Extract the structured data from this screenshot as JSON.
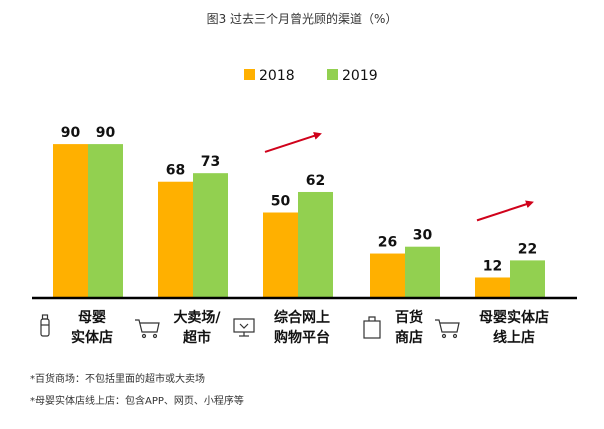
{
  "chart_data": {
    "type": "bar",
    "title": "图3 过去三个月曾光顾的渠道（%）",
    "categories": [
      [
        "母婴",
        "实体店"
      ],
      [
        "大卖场/",
        "超市"
      ],
      [
        "综合网上",
        "购物平台"
      ],
      [
        "百货",
        "商店"
      ],
      [
        "母婴实体店",
        "线上店"
      ]
    ],
    "category_icons": [
      "bottle-icon",
      "cart-icon",
      "computer-icon",
      "bag-icon",
      "cart-icon"
    ],
    "series": [
      {
        "name": "2018",
        "color": "#FFB000",
        "values": [
          90,
          68,
          50,
          26,
          12
        ]
      },
      {
        "name": "2019",
        "color": "#92D050",
        "values": [
          90,
          73,
          62,
          30,
          22
        ]
      }
    ],
    "ylim": [
      0,
      100
    ],
    "xlabel": "",
    "ylabel": "",
    "grid": false,
    "legend_position": "top-center",
    "trend_arrows_after_categories": [
      2,
      4
    ],
    "arrow_color": "#D0021B"
  },
  "notes": [
    "*百货商场：不包括里面的超市或大卖场",
    "*母婴实体店线上店：包含APP、网页、小程序等"
  ]
}
